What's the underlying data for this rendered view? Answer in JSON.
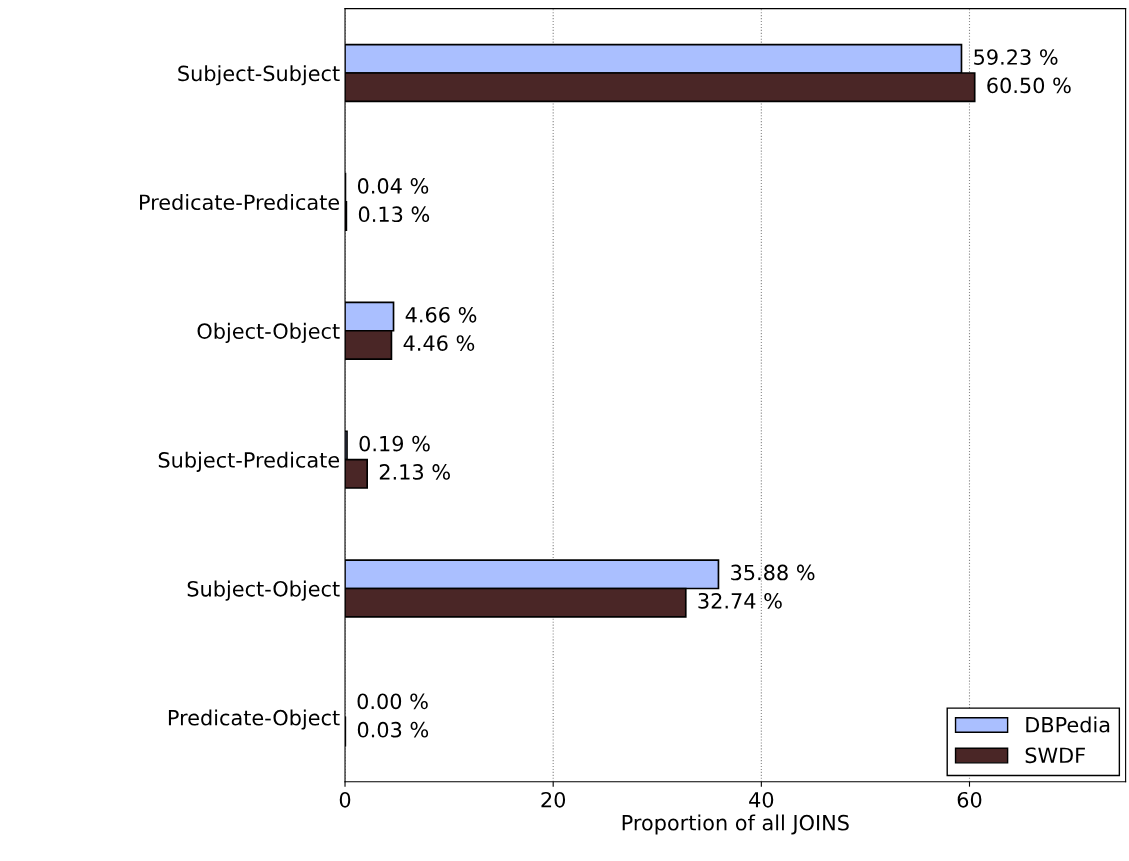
{
  "chart_data": {
    "type": "bar",
    "orientation": "horizontal",
    "categories": [
      "Subject-Subject",
      "Predicate-Predicate",
      "Object-Object",
      "Subject-Predicate",
      "Subject-Object",
      "Predicate-Object"
    ],
    "series": [
      {
        "name": "DBPedia",
        "color": "#aabfff",
        "values": [
          59.23,
          0.04,
          4.66,
          0.19,
          35.88,
          0.0
        ],
        "value_labels": [
          "59.23 %",
          "0.04 %",
          "4.66 %",
          "0.19 %",
          "35.88 %",
          "0.00 %"
        ]
      },
      {
        "name": "SWDF",
        "color": "#4a2626",
        "values": [
          60.5,
          0.13,
          4.46,
          2.13,
          32.74,
          0.03
        ],
        "value_labels": [
          "60.50 %",
          "0.13 %",
          "4.46 %",
          "2.13 %",
          "32.74 %",
          "0.03 %"
        ]
      }
    ],
    "xlabel": "Proportion of all JOINS",
    "xlim": [
      0,
      75
    ],
    "xticks": [
      0,
      20,
      40,
      60
    ],
    "grid": "x",
    "legend": "bottom right"
  }
}
